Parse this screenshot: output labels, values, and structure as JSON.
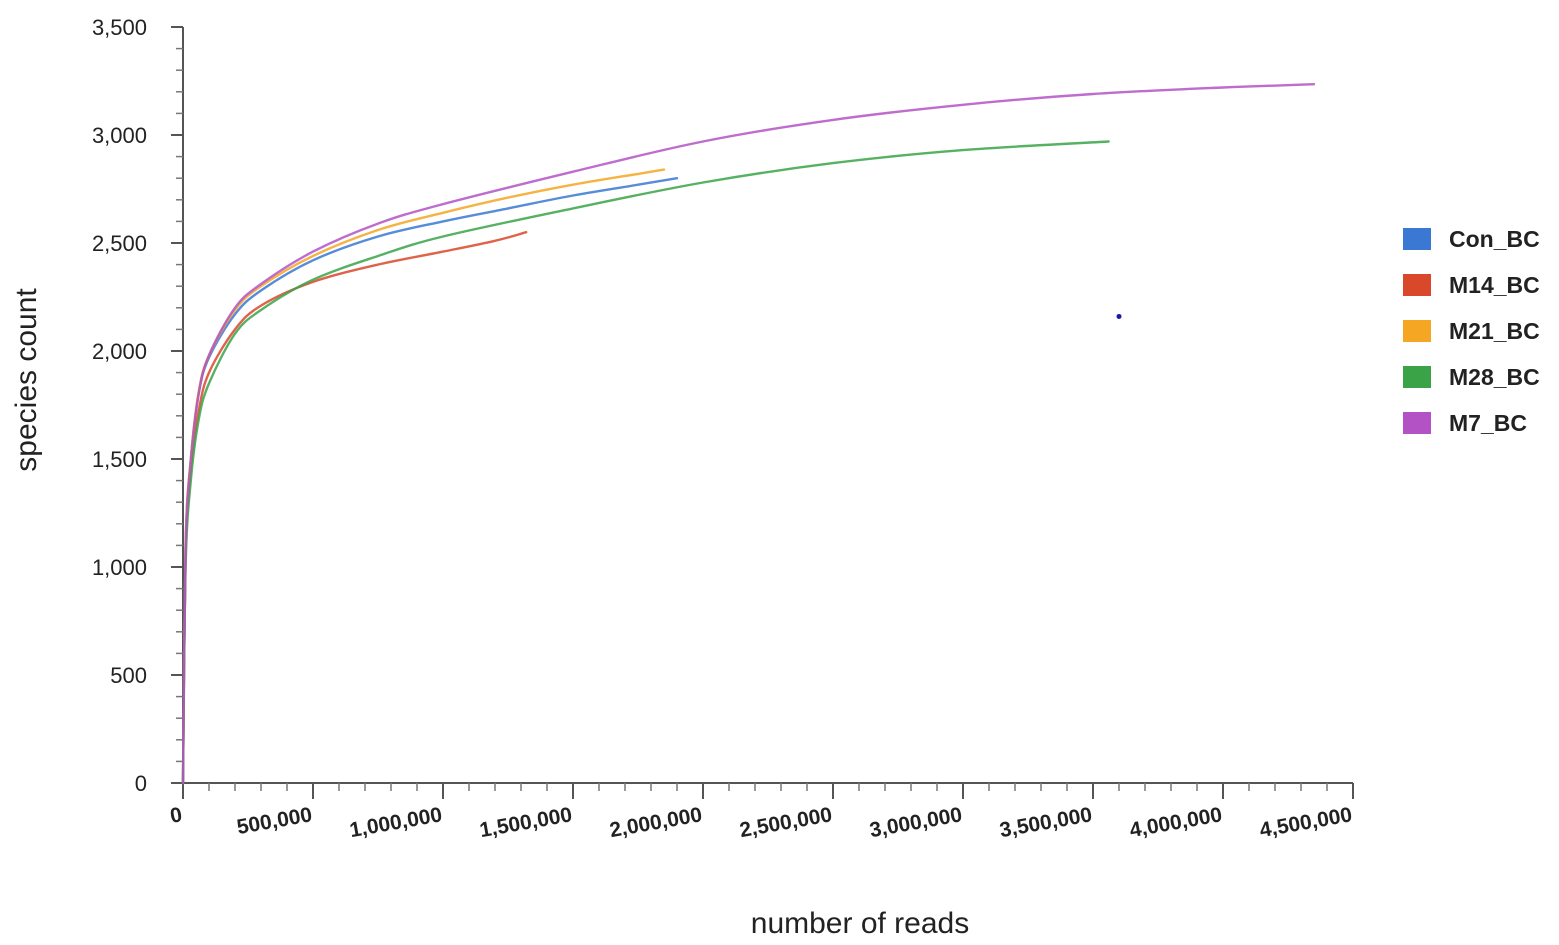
{
  "chart_data": {
    "type": "line",
    "title": "",
    "xlabel": "number of reads",
    "ylabel": "species count",
    "xlim": [
      0,
      4500000
    ],
    "ylim": [
      0,
      3500
    ],
    "x_ticks": [
      0,
      500000,
      1000000,
      1500000,
      2000000,
      2500000,
      3000000,
      3500000,
      4000000,
      4500000
    ],
    "x_tick_labels": [
      "0",
      "500,000",
      "1,000,000",
      "1,500,000",
      "2,000,000",
      "2,500,000",
      "3,000,000",
      "3,500,000",
      "4,000,000",
      "4,500,000"
    ],
    "y_ticks": [
      0,
      500,
      1000,
      1500,
      2000,
      2500,
      3000,
      3500
    ],
    "y_tick_labels": [
      "0",
      "500",
      "1,000",
      "1,500",
      "2,000",
      "2,500",
      "3,000",
      "3,500"
    ],
    "grid": false,
    "legend_position": "right",
    "series": [
      {
        "name": "Con_BC",
        "color": "#3a78d4",
        "points": [
          [
            0,
            0
          ],
          [
            10000,
            1100
          ],
          [
            30000,
            1500
          ],
          [
            60000,
            1800
          ],
          [
            100000,
            1970
          ],
          [
            200000,
            2170
          ],
          [
            300000,
            2280
          ],
          [
            500000,
            2420
          ],
          [
            750000,
            2530
          ],
          [
            1000000,
            2600
          ],
          [
            1250000,
            2660
          ],
          [
            1500000,
            2720
          ],
          [
            1750000,
            2770
          ],
          [
            1900000,
            2800
          ]
        ]
      },
      {
        "name": "M14_BC",
        "color": "#d9482b",
        "points": [
          [
            0,
            0
          ],
          [
            10000,
            1050
          ],
          [
            30000,
            1450
          ],
          [
            60000,
            1720
          ],
          [
            100000,
            1900
          ],
          [
            200000,
            2100
          ],
          [
            300000,
            2210
          ],
          [
            500000,
            2320
          ],
          [
            750000,
            2400
          ],
          [
            1000000,
            2460
          ],
          [
            1200000,
            2510
          ],
          [
            1320000,
            2550
          ]
        ]
      },
      {
        "name": "M21_BC",
        "color": "#f5a623",
        "points": [
          [
            0,
            0
          ],
          [
            10000,
            1100
          ],
          [
            30000,
            1500
          ],
          [
            60000,
            1810
          ],
          [
            100000,
            1980
          ],
          [
            200000,
            2190
          ],
          [
            300000,
            2300
          ],
          [
            500000,
            2440
          ],
          [
            750000,
            2560
          ],
          [
            1000000,
            2640
          ],
          [
            1250000,
            2710
          ],
          [
            1500000,
            2770
          ],
          [
            1750000,
            2820
          ],
          [
            1850000,
            2840
          ]
        ]
      },
      {
        "name": "M28_BC",
        "color": "#3aa348",
        "points": [
          [
            0,
            0
          ],
          [
            10000,
            1000
          ],
          [
            30000,
            1400
          ],
          [
            60000,
            1680
          ],
          [
            100000,
            1850
          ],
          [
            200000,
            2080
          ],
          [
            300000,
            2190
          ],
          [
            500000,
            2330
          ],
          [
            750000,
            2440
          ],
          [
            1000000,
            2530
          ],
          [
            1500000,
            2660
          ],
          [
            2000000,
            2780
          ],
          [
            2500000,
            2870
          ],
          [
            3000000,
            2930
          ],
          [
            3560000,
            2970
          ]
        ]
      },
      {
        "name": "M7_BC",
        "color": "#b352c4",
        "points": [
          [
            0,
            0
          ],
          [
            10000,
            1080
          ],
          [
            30000,
            1490
          ],
          [
            60000,
            1800
          ],
          [
            100000,
            1980
          ],
          [
            200000,
            2200
          ],
          [
            300000,
            2310
          ],
          [
            500000,
            2460
          ],
          [
            750000,
            2590
          ],
          [
            1000000,
            2680
          ],
          [
            1500000,
            2830
          ],
          [
            2000000,
            2970
          ],
          [
            2500000,
            3070
          ],
          [
            3000000,
            3140
          ],
          [
            3500000,
            3190
          ],
          [
            4000000,
            3220
          ],
          [
            4350000,
            3235
          ]
        ]
      }
    ],
    "annotations": [
      {
        "type": "dot",
        "x": 3600000,
        "y": 2160,
        "color": "#1a1aa8"
      }
    ]
  }
}
